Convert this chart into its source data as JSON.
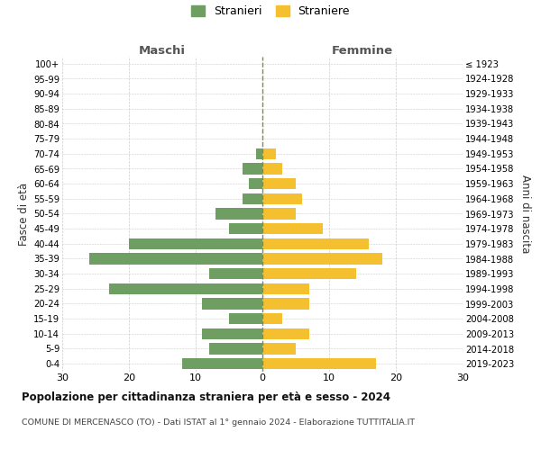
{
  "age_groups": [
    "100+",
    "95-99",
    "90-94",
    "85-89",
    "80-84",
    "75-79",
    "70-74",
    "65-69",
    "60-64",
    "55-59",
    "50-54",
    "45-49",
    "40-44",
    "35-39",
    "30-34",
    "25-29",
    "20-24",
    "15-19",
    "10-14",
    "5-9",
    "0-4"
  ],
  "birth_years": [
    "≤ 1923",
    "1924-1928",
    "1929-1933",
    "1934-1938",
    "1939-1943",
    "1944-1948",
    "1949-1953",
    "1954-1958",
    "1959-1963",
    "1964-1968",
    "1969-1973",
    "1974-1978",
    "1979-1983",
    "1984-1988",
    "1989-1993",
    "1994-1998",
    "1999-2003",
    "2004-2008",
    "2009-2013",
    "2014-2018",
    "2019-2023"
  ],
  "males": [
    0,
    0,
    0,
    0,
    0,
    0,
    1,
    3,
    2,
    3,
    7,
    5,
    20,
    26,
    8,
    23,
    9,
    5,
    9,
    8,
    12
  ],
  "females": [
    0,
    0,
    0,
    0,
    0,
    0,
    2,
    3,
    5,
    6,
    5,
    9,
    16,
    18,
    14,
    7,
    7,
    3,
    7,
    5,
    17
  ],
  "male_color": "#6e9e62",
  "female_color": "#f5c030",
  "background_color": "#ffffff",
  "grid_color": "#cccccc",
  "title": "Popolazione per cittadinanza straniera per età e sesso - 2024",
  "subtitle": "COMUNE DI MERCENASCO (TO) - Dati ISTAT al 1° gennaio 2024 - Elaborazione TUTTITALIA.IT",
  "xlabel_left": "Maschi",
  "xlabel_right": "Femmine",
  "ylabel_left": "Fasce di età",
  "ylabel_right": "Anni di nascita",
  "legend_male": "Stranieri",
  "legend_female": "Straniere",
  "xlim": 30,
  "bar_height": 0.75
}
